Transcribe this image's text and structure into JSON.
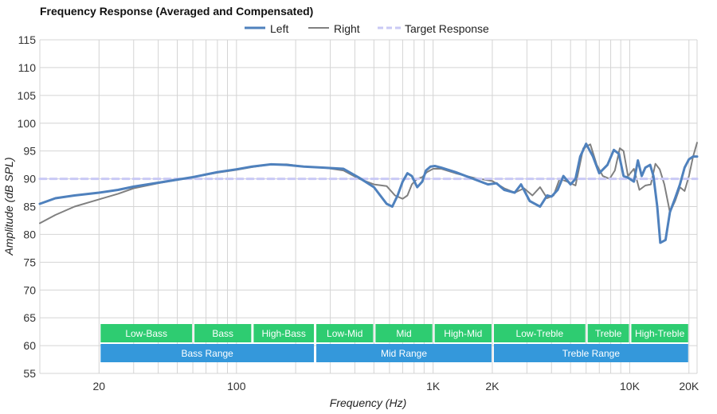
{
  "chart_data": {
    "type": "line",
    "title": "Frequency Response (Averaged and Compensated)",
    "xlabel": "Frequency (Hz)",
    "ylabel": "Amplitude (dB SPL)",
    "x_scale": "log",
    "xlim": [
      10,
      22000
    ],
    "ylim": [
      55,
      115
    ],
    "grid": true,
    "legend_position": "top-center",
    "x_ticks": [
      {
        "value": 20,
        "label": "20"
      },
      {
        "value": 100,
        "label": "100"
      },
      {
        "value": 1000,
        "label": "1K"
      },
      {
        "value": 2000,
        "label": "2K"
      },
      {
        "value": 10000,
        "label": "10K"
      },
      {
        "value": 20000,
        "label": "20K"
      }
    ],
    "y_ticks": [
      {
        "value": 115,
        "label": "115"
      },
      {
        "value": 110,
        "label": "110"
      },
      {
        "value": 105,
        "label": "105"
      },
      {
        "value": 100,
        "label": "100"
      },
      {
        "value": 95,
        "label": "95"
      },
      {
        "value": 90,
        "label": "90"
      },
      {
        "value": 85,
        "label": "85"
      },
      {
        "value": 80,
        "label": "80"
      },
      {
        "value": 75,
        "label": "75"
      },
      {
        "value": 70,
        "label": "70"
      },
      {
        "value": 65,
        "label": "65"
      },
      {
        "value": 60,
        "label": "60"
      },
      {
        "value": 55,
        "label": "55"
      }
    ],
    "series": [
      {
        "name": "Left",
        "color": "#4f81bd",
        "style": "solid",
        "x": [
          10,
          12,
          15,
          20,
          25,
          30,
          40,
          60,
          80,
          100,
          120,
          150,
          180,
          220,
          280,
          350,
          420,
          500,
          580,
          620,
          660,
          700,
          740,
          780,
          830,
          880,
          920,
          970,
          1020,
          1100,
          1300,
          1600,
          1900,
          2100,
          2300,
          2600,
          2800,
          3100,
          3500,
          3800,
          4000,
          4300,
          4600,
          5000,
          5300,
          5600,
          6000,
          6500,
          7000,
          7700,
          8300,
          8800,
          9300,
          9800,
          10500,
          11000,
          11500,
          12000,
          12700,
          13200,
          13800,
          14300,
          15200,
          16000,
          16400,
          17000,
          18000,
          19000,
          20000,
          21000,
          22000
        ],
        "values": [
          85.5,
          86.5,
          87,
          87.5,
          88,
          88.6,
          89.3,
          90.3,
          91.2,
          91.7,
          92.2,
          92.6,
          92.5,
          92.2,
          92,
          91.8,
          90.2,
          88.5,
          85.5,
          85,
          87,
          89.5,
          91,
          90.5,
          88.5,
          89.5,
          91.5,
          92.2,
          92.3,
          92,
          91.2,
          90,
          89,
          89.2,
          88,
          87.5,
          89,
          86,
          85,
          87,
          86.8,
          88,
          90.5,
          89,
          90,
          94,
          96.3,
          94,
          91,
          92.5,
          95.2,
          94.5,
          90.5,
          90.2,
          89.5,
          93.3,
          90.5,
          92,
          92.5,
          90.5,
          85,
          78.5,
          79,
          84,
          85,
          86.5,
          89,
          92,
          93.5,
          94,
          94
        ]
      },
      {
        "name": "Right",
        "color": "#808080",
        "style": "solid",
        "x": [
          10,
          12,
          15,
          20,
          25,
          30,
          40,
          60,
          80,
          100,
          120,
          150,
          180,
          220,
          280,
          350,
          420,
          500,
          580,
          640,
          700,
          740,
          780,
          830,
          880,
          930,
          1000,
          1100,
          1300,
          1600,
          2000,
          2300,
          2600,
          2900,
          3200,
          3500,
          3800,
          4100,
          4400,
          4800,
          5300,
          5800,
          6300,
          6800,
          7300,
          7900,
          8400,
          8900,
          9300,
          9800,
          10500,
          11200,
          12000,
          12800,
          13500,
          14200,
          15000,
          16000,
          17000,
          18000,
          19000,
          20000,
          21000,
          22000
        ],
        "values": [
          82,
          83.5,
          85,
          86.3,
          87.3,
          88.3,
          89.2,
          90.3,
          91.1,
          91.6,
          92.1,
          92.6,
          92.6,
          92.2,
          92,
          91.5,
          90,
          89,
          88.7,
          87,
          86.4,
          87,
          89,
          90,
          90.3,
          91.2,
          91.8,
          91.8,
          91,
          90.2,
          89.6,
          88.3,
          87.5,
          88.3,
          87,
          88.5,
          86.5,
          87,
          90,
          89.5,
          88.8,
          95.5,
          96.2,
          92.5,
          90.5,
          90,
          91.5,
          95.5,
          95,
          90.5,
          91.8,
          88,
          88.8,
          89,
          92.7,
          91.7,
          89,
          84,
          86,
          88.5,
          87.8,
          90.5,
          94,
          96.5
        ]
      },
      {
        "name": "Target Response",
        "color": "#c9c9f5",
        "style": "dashed",
        "x": [
          10,
          22000
        ],
        "values": [
          90,
          90
        ]
      }
    ],
    "bands": [
      {
        "label": "Low-Bass",
        "from": 20,
        "to": 60,
        "row": 1
      },
      {
        "label": "Bass",
        "from": 60,
        "to": 120,
        "row": 1
      },
      {
        "label": "High-Bass",
        "from": 120,
        "to": 250,
        "row": 1
      },
      {
        "label": "Low-Mid",
        "from": 250,
        "to": 500,
        "row": 1
      },
      {
        "label": "Mid",
        "from": 500,
        "to": 1000,
        "row": 1
      },
      {
        "label": "High-Mid",
        "from": 1000,
        "to": 2000,
        "row": 1
      },
      {
        "label": "Low-Treble",
        "from": 2000,
        "to": 6000,
        "row": 1
      },
      {
        "label": "Treble",
        "from": 6000,
        "to": 10000,
        "row": 1
      },
      {
        "label": "High-Treble",
        "from": 10000,
        "to": 20000,
        "row": 1
      },
      {
        "label": "Bass Range",
        "from": 20,
        "to": 250,
        "row": 2
      },
      {
        "label": "Mid Range",
        "from": 250,
        "to": 2000,
        "row": 2
      },
      {
        "label": "Treble Range",
        "from": 2000,
        "to": 20000,
        "row": 2
      }
    ],
    "band_colors": {
      "row1": "#2ecc71",
      "row2": "#3498db"
    }
  }
}
